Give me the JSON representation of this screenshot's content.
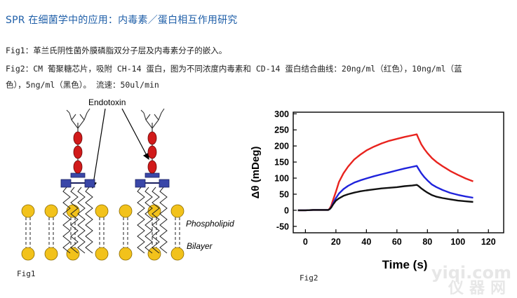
{
  "title": "SPR 在细菌学中的应用：内毒素／蛋白相互作用研究",
  "captions": {
    "fig1": "Fig1：革兰氏阴性菌外膜磷脂双分子层及内毒素分子的嵌入。",
    "fig2_line1": "Fig2：CM 葡聚糖芯片，吸附 CH-14 蛋白，图为不同浓度内毒素和 CD-14 蛋白结合曲线：20ng/ml（红色），10ng/ml（蓝",
    "fig2_line2": "色），5ng/ml（黑色）。   流速：50ul/min"
  },
  "fig1": {
    "label": "Fig1",
    "endotoxin_label": "Endotoxin",
    "phospholipid_label": "Phospholipid",
    "bilayer_label": "Bilayer",
    "colors": {
      "head": "#f2c21b",
      "sugar": "#d11a1a",
      "core": "#3a47a8"
    }
  },
  "fig2": {
    "label": "Fig2"
  },
  "watermark": {
    "line1": "yiqi.com",
    "line2": "仪器网"
  },
  "chart_data": {
    "type": "line",
    "xlabel": "Time (s)",
    "ylabel": "Δθ (mDeg)",
    "xlim": [
      -8,
      130
    ],
    "ylim": [
      -70,
      305
    ],
    "xticks": [
      0,
      20,
      40,
      60,
      80,
      100,
      120
    ],
    "yticks": [
      -50,
      0,
      50,
      100,
      150,
      200,
      250,
      300
    ],
    "grid": false,
    "series": [
      {
        "color": "#e8231e",
        "x": [
          -5,
          0,
          5,
          10,
          15,
          16,
          17,
          18,
          20,
          22,
          25,
          28,
          32,
          36,
          40,
          45,
          50,
          55,
          60,
          65,
          70,
          73,
          74,
          76,
          78,
          80,
          83,
          86,
          90,
          95,
          100,
          105,
          110
        ],
        "y": [
          0,
          0,
          1,
          1,
          1,
          6,
          15,
          30,
          58,
          88,
          115,
          136,
          158,
          173,
          186,
          198,
          208,
          216,
          222,
          228,
          233,
          236,
          225,
          205,
          190,
          178,
          162,
          150,
          137,
          122,
          110,
          99,
          90
        ]
      },
      {
        "color": "#1f23dc",
        "x": [
          -5,
          0,
          5,
          10,
          15,
          16,
          17,
          18,
          20,
          22,
          25,
          28,
          32,
          36,
          40,
          45,
          50,
          55,
          60,
          65,
          70,
          73,
          74,
          76,
          78,
          80,
          83,
          86,
          90,
          95,
          100,
          105,
          110
        ],
        "y": [
          0,
          0,
          1,
          1,
          1,
          4,
          10,
          20,
          38,
          52,
          66,
          76,
          86,
          93,
          99,
          106,
          112,
          118,
          124,
          130,
          135,
          138,
          130,
          115,
          103,
          93,
          80,
          72,
          63,
          54,
          48,
          43,
          39
        ]
      },
      {
        "color": "#111111",
        "x": [
          -5,
          0,
          5,
          10,
          15,
          16,
          17,
          18,
          20,
          22,
          25,
          28,
          32,
          36,
          40,
          45,
          50,
          55,
          60,
          65,
          70,
          73,
          74,
          76,
          78,
          80,
          83,
          86,
          90,
          95,
          100,
          105,
          110
        ],
        "y": [
          0,
          0,
          1,
          1,
          1,
          4,
          9,
          17,
          30,
          37,
          45,
          50,
          55,
          59,
          62,
          65,
          68,
          70,
          72,
          75,
          77,
          79,
          76,
          68,
          61,
          55,
          47,
          42,
          38,
          34,
          30,
          28,
          26
        ]
      }
    ]
  }
}
